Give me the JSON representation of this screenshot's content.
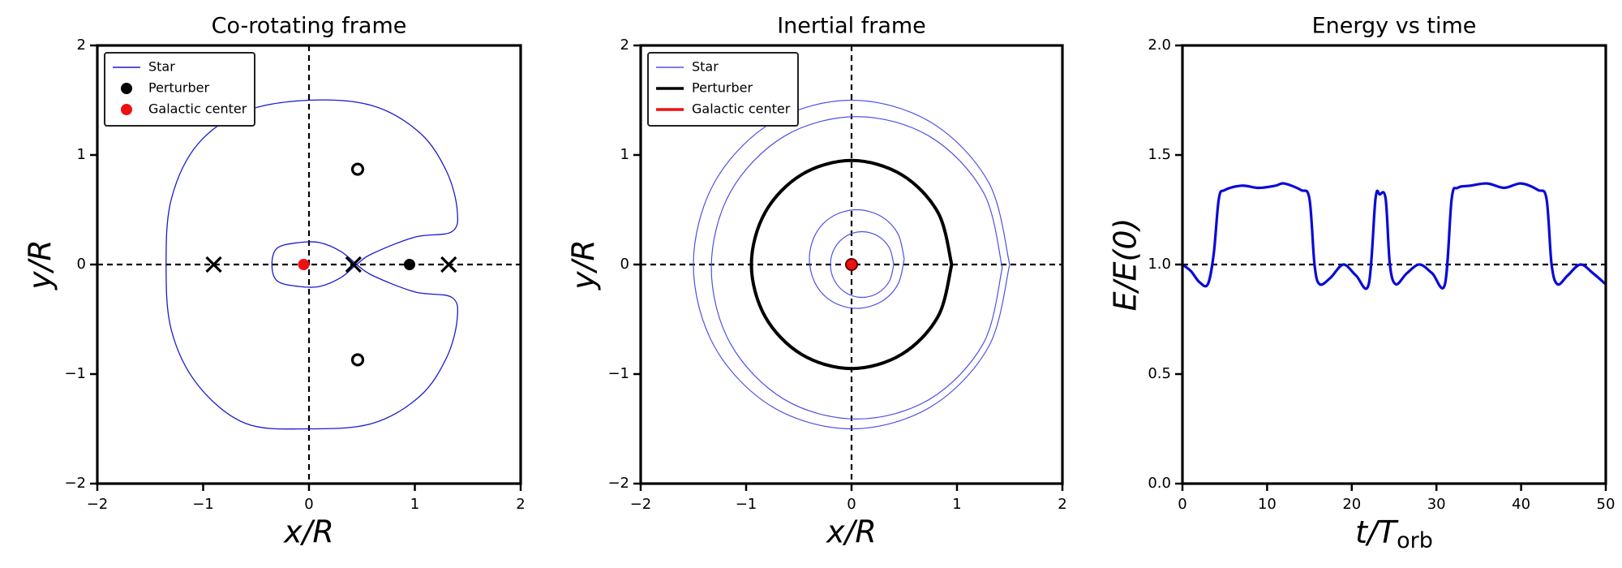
{
  "chart_data": [
    {
      "type": "line",
      "title": "Co-rotating frame",
      "xlabel": "x/R",
      "ylabel": "y/R",
      "xlim": [
        -2,
        2
      ],
      "ylim": [
        -2,
        2
      ],
      "xticks": [
        {
          "value": -2,
          "label": "−2"
        },
        {
          "value": -1,
          "label": "−1"
        },
        0,
        1,
        2
      ],
      "yticks": [
        {
          "value": -2,
          "label": "−2"
        },
        {
          "value": -1,
          "label": "−1"
        },
        0,
        1,
        2
      ],
      "ref_lines": {
        "x": [
          0
        ],
        "y": [
          0
        ]
      },
      "legend": "upper left",
      "legend_style": "mixed",
      "series": [
        {
          "name": "Star",
          "kind": "line",
          "color": "#1a1ad0",
          "x": [
            0.45,
            0.3,
            0.1,
            -0.1,
            -0.3,
            -0.35,
            -0.3,
            -0.1,
            0.1,
            0.3,
            0.45,
            0.6,
            1.0,
            1.35,
            1.4,
            1.3,
            1.05,
            0.6,
            0,
            -0.6,
            -1.05,
            -1.3,
            -1.35,
            -1.3,
            -1.05,
            -0.6,
            0,
            0.6,
            1.05,
            1.3,
            1.4,
            1.35,
            1.0,
            0.6,
            0.45
          ],
          "y": [
            0,
            0.12,
            0.2,
            0.2,
            0.15,
            0,
            -0.15,
            -0.2,
            -0.2,
            -0.12,
            0,
            0.1,
            0.25,
            0.3,
            0.5,
            0.85,
            1.2,
            1.45,
            1.5,
            1.4,
            1.1,
            0.6,
            0,
            -0.6,
            -1.1,
            -1.45,
            -1.5,
            -1.45,
            -1.2,
            -0.85,
            -0.5,
            -0.3,
            -0.25,
            -0.1,
            0
          ]
        },
        {
          "name": "Perturber",
          "kind": "point",
          "color": "#000000",
          "x": [
            0.95
          ],
          "y": [
            0
          ]
        },
        {
          "name": "Galactic center",
          "kind": "point",
          "color": "#ee1111",
          "x": [
            -0.05
          ],
          "y": [
            0
          ]
        }
      ],
      "markers": [
        {
          "symbol": "x",
          "x": [
            -0.9,
            0.42,
            1.32
          ],
          "y": [
            0,
            0,
            0
          ]
        },
        {
          "symbol": "o",
          "x": [
            0.46,
            0.46
          ],
          "y": [
            0.87,
            -0.87
          ]
        }
      ]
    },
    {
      "type": "line",
      "title": "Inertial frame",
      "xlabel": "x/R",
      "ylabel": "y/R",
      "xlim": [
        -2,
        2
      ],
      "ylim": [
        -2,
        2
      ],
      "xticks": [
        {
          "value": -2,
          "label": "−2"
        },
        {
          "value": -1,
          "label": "−1"
        },
        0,
        1,
        2
      ],
      "yticks": [
        {
          "value": -2,
          "label": "−2"
        },
        {
          "value": -1,
          "label": "−1"
        },
        0,
        1,
        2
      ],
      "ref_lines": {
        "x": [
          0
        ],
        "y": [
          0
        ]
      },
      "legend": "upper left",
      "legend_style": "line",
      "series": [
        {
          "name": "Star",
          "kind": "line",
          "color": "#5050e6",
          "x": [
            1.5,
            1.3,
            0.75,
            0,
            -0.75,
            -1.3,
            -1.5,
            -1.3,
            -0.75,
            0,
            0.75,
            1.3,
            1.5,
            null,
            1.43,
            1.25,
            0.74,
            0.05,
            -0.64,
            -1.15,
            -1.33,
            -1.15,
            -0.64,
            0.05,
            0.74,
            1.25,
            1.43,
            null,
            0.5,
            0.44,
            0.28,
            0.05,
            -0.18,
            -0.34,
            -0.4,
            -0.34,
            -0.18,
            0.05,
            0.28,
            0.44,
            0.5,
            null,
            0.4,
            0.36,
            0.25,
            0.1,
            -0.05,
            -0.16,
            -0.2,
            -0.16,
            -0.05,
            0.1,
            0.25,
            0.36,
            0.4
          ],
          "y": [
            0,
            0.75,
            1.3,
            1.5,
            1.3,
            0.75,
            0,
            -0.75,
            -1.3,
            -1.5,
            -1.3,
            -0.75,
            0,
            null,
            -0.03,
            0.66,
            1.17,
            1.35,
            1.17,
            0.66,
            -0.03,
            -0.72,
            -1.23,
            -1.41,
            -1.23,
            -0.72,
            -0.03,
            null,
            0.05,
            0.28,
            0.44,
            0.5,
            0.44,
            0.28,
            0.05,
            -0.18,
            -0.34,
            -0.4,
            -0.34,
            -0.18,
            0.05,
            null,
            0,
            0.15,
            0.26,
            0.3,
            0.26,
            0.15,
            0,
            -0.15,
            -0.26,
            -0.3,
            -0.26,
            -0.15,
            0
          ]
        },
        {
          "name": "Perturber",
          "kind": "line",
          "color": "#000000",
          "x": [
            0.95,
            0.82,
            0.475,
            0,
            -0.475,
            -0.82,
            -0.95,
            -0.82,
            -0.475,
            0,
            0.475,
            0.82,
            0.95
          ],
          "y": [
            0,
            0.475,
            0.82,
            0.95,
            0.82,
            0.475,
            0,
            -0.475,
            -0.82,
            -0.95,
            -0.82,
            -0.475,
            0
          ]
        },
        {
          "name": "Galactic center",
          "kind": "point",
          "color": "#ee1111",
          "x": [
            0
          ],
          "y": [
            0
          ]
        }
      ]
    },
    {
      "type": "line",
      "title": "Energy vs time",
      "xlabel": {
        "text": "t/T",
        "sub": "orb"
      },
      "ylabel": "E/E(0)",
      "xlim": [
        0,
        50
      ],
      "ylim": [
        0,
        2
      ],
      "xticks": [
        0,
        10,
        20,
        30,
        40,
        50
      ],
      "yticks": [
        {
          "value": 0,
          "label": "0.0"
        },
        0.5,
        {
          "value": 1,
          "label": "1.0"
        },
        1.5,
        {
          "value": 2,
          "label": "2.0"
        }
      ],
      "ref_lines": {
        "y": [
          1
        ]
      },
      "series": [
        {
          "kind": "line",
          "color": "#0a0ad8",
          "x": [
            0,
            1,
            2,
            3,
            3.7,
            4.3,
            5,
            7,
            9,
            11,
            12,
            14,
            15,
            15.6,
            16.2,
            17.5,
            19,
            20.5,
            22,
            22.8,
            23.3,
            24,
            24.5,
            25.2,
            26.5,
            28,
            29.5,
            31,
            31.8,
            32.5,
            34,
            36,
            38,
            40,
            42,
            43,
            43.6,
            44.3,
            45.5,
            47,
            48.5,
            50
          ],
          "y": [
            1,
            0.97,
            0.92,
            0.91,
            1.05,
            1.3,
            1.34,
            1.36,
            1.35,
            1.36,
            1.37,
            1.34,
            1.3,
            1.0,
            0.91,
            0.94,
            1.0,
            0.95,
            0.91,
            1.3,
            1.32,
            1.3,
            1.0,
            0.91,
            0.96,
            1.0,
            0.96,
            0.91,
            1.3,
            1.35,
            1.36,
            1.37,
            1.35,
            1.37,
            1.34,
            1.3,
            1.0,
            0.91,
            0.95,
            1.0,
            0.96,
            0.91
          ]
        }
      ]
    }
  ]
}
